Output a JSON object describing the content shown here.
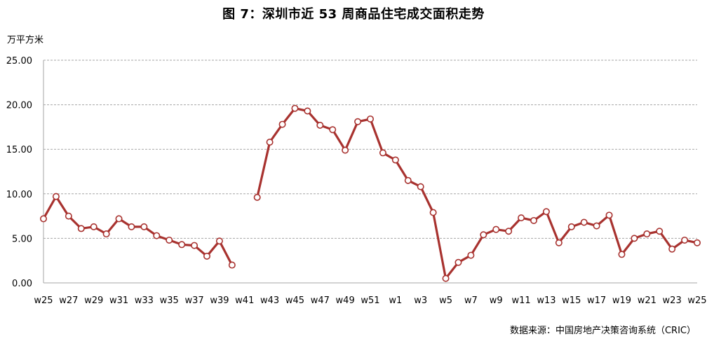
{
  "title": "图 7：深圳市近 53 周商品住宅成交面积走势",
  "unit_label": "万平方米",
  "source": "数据来源：中国房地产决策咨询系统（CRIC）",
  "colors": {
    "line": "#a8322f",
    "marker_fill": "#ffffff",
    "grid": "#a6a6a6",
    "axis": "#a6a6a6"
  },
  "chart_data": {
    "type": "line",
    "title": "图 7：深圳市近 53 周商品住宅成交面积走势",
    "ylabel": "万平方米",
    "xlabel": "",
    "ylim": [
      0,
      25
    ],
    "yticks": [
      "0.00",
      "5.00",
      "10.00",
      "15.00",
      "20.00",
      "25.00"
    ],
    "grid": true,
    "legend": "none",
    "x": [
      "w25",
      "w26",
      "w27",
      "w28",
      "w29",
      "w30",
      "w31",
      "w32",
      "w33",
      "w34",
      "w35",
      "w36",
      "w37",
      "w38",
      "w39",
      "w40",
      "w41",
      "w42",
      "w43",
      "w44",
      "w45",
      "w46",
      "w47",
      "w48",
      "w49",
      "w50",
      "w51",
      "w52",
      "w1",
      "w2",
      "w3",
      "w4",
      "w5",
      "w6",
      "w7",
      "w8",
      "w9",
      "w10",
      "w11",
      "w12",
      "w13",
      "w14",
      "w15",
      "w16",
      "w17",
      "w18",
      "w19",
      "w20",
      "w21",
      "w22",
      "w23",
      "w24",
      "w25"
    ],
    "x_tick_labels": [
      "w25",
      "w27",
      "w29",
      "w31",
      "w33",
      "w35",
      "w37",
      "w39",
      "w41",
      "w43",
      "w45",
      "w47",
      "w49",
      "w51",
      "w1",
      "w3",
      "w5",
      "w7",
      "w9",
      "w11",
      "w13",
      "w15",
      "w17",
      "w19",
      "w21",
      "w23",
      "w25"
    ],
    "values": [
      7.2,
      9.7,
      7.5,
      6.1,
      6.3,
      5.5,
      7.2,
      6.3,
      6.3,
      5.3,
      4.8,
      4.3,
      4.2,
      3.0,
      4.7,
      2.0,
      null,
      9.6,
      15.8,
      17.8,
      19.6,
      19.3,
      17.7,
      17.2,
      14.9,
      18.1,
      18.4,
      14.6,
      13.8,
      11.5,
      10.8,
      7.9,
      0.5,
      2.3,
      3.1,
      5.4,
      6.0,
      5.8,
      7.3,
      7.0,
      8.0,
      4.5,
      6.3,
      6.8,
      6.4,
      7.6,
      3.2,
      5.0,
      5.5,
      5.8,
      3.8,
      4.8,
      4.5
    ]
  }
}
